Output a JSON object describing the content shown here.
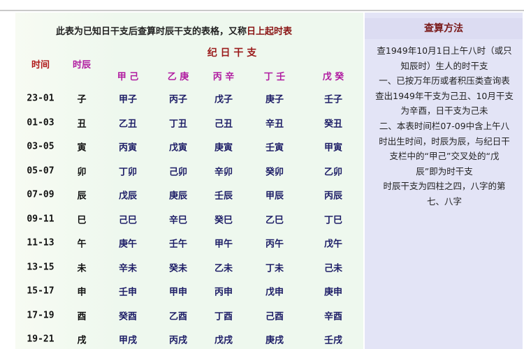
{
  "intro": {
    "text": "此表为已知日干支后查算时辰干支的表格，又称",
    "highlight": "日上起时表"
  },
  "headers": {
    "time": "时间",
    "branch": "时辰",
    "group": "纪 日 干 支",
    "stems": [
      "甲 己",
      "乙 庚",
      "丙 辛",
      "丁 壬",
      "戊 癸"
    ]
  },
  "colors": {
    "time_header": "#b01a1a",
    "branch_header": "#b01aa0",
    "group_header": "#9a1a1a",
    "stem_header": "#b01aa0",
    "cell": "#1c1c66",
    "panel_bg": "#e3e4f6",
    "table_bg": "#eef8ee"
  },
  "rows": [
    {
      "time": "23-01",
      "branch": "子",
      "cells": [
        "甲子",
        "丙子",
        "戊子",
        "庚子",
        "壬子"
      ]
    },
    {
      "time": "01-03",
      "branch": "丑",
      "cells": [
        "乙丑",
        "丁丑",
        "己丑",
        "辛丑",
        "癸丑"
      ]
    },
    {
      "time": "03-05",
      "branch": "寅",
      "cells": [
        "丙寅",
        "戊寅",
        "庚寅",
        "壬寅",
        "甲寅"
      ]
    },
    {
      "time": "05-07",
      "branch": "卯",
      "cells": [
        "丁卯",
        "己卯",
        "辛卯",
        "癸卯",
        "乙卯"
      ]
    },
    {
      "time": "07-09",
      "branch": "辰",
      "cells": [
        "戊辰",
        "庚辰",
        "壬辰",
        "甲辰",
        "丙辰"
      ]
    },
    {
      "time": "09-11",
      "branch": "巳",
      "cells": [
        "己巳",
        "辛巳",
        "癸巳",
        "乙巳",
        "丁巳"
      ]
    },
    {
      "time": "11-13",
      "branch": "午",
      "cells": [
        "庚午",
        "壬午",
        "甲午",
        "丙午",
        "戊午"
      ]
    },
    {
      "time": "13-15",
      "branch": "未",
      "cells": [
        "辛未",
        "癸未",
        "乙未",
        "丁未",
        "己未"
      ]
    },
    {
      "time": "15-17",
      "branch": "申",
      "cells": [
        "壬申",
        "甲申",
        "丙申",
        "戊申",
        "庚申"
      ]
    },
    {
      "time": "17-19",
      "branch": "酉",
      "cells": [
        "癸酉",
        "乙酉",
        "丁酉",
        "己酉",
        "辛酉"
      ]
    },
    {
      "time": "19-21",
      "branch": "戌",
      "cells": [
        "甲戌",
        "丙戌",
        "戊戌",
        "庚戌",
        "壬戌"
      ]
    }
  ],
  "panel": {
    "title": "查算方法",
    "lines": [
      "查1949年10月1日上午八时（或只",
      "知辰时）生人的时干支",
      "一、已按万年历或者积压类查询表",
      "查出1949年干支为己丑、10月干支",
      "为辛酉，日干支为己未",
      "二、本表时间栏07-09中含上午八",
      "时出生时间，时辰为辰，与纪日干",
      "支栏中的“甲己”交叉处的“戊",
      "辰”即为时干支",
      "时辰干支为四柱之四，八字的第",
      "七、八字"
    ]
  }
}
